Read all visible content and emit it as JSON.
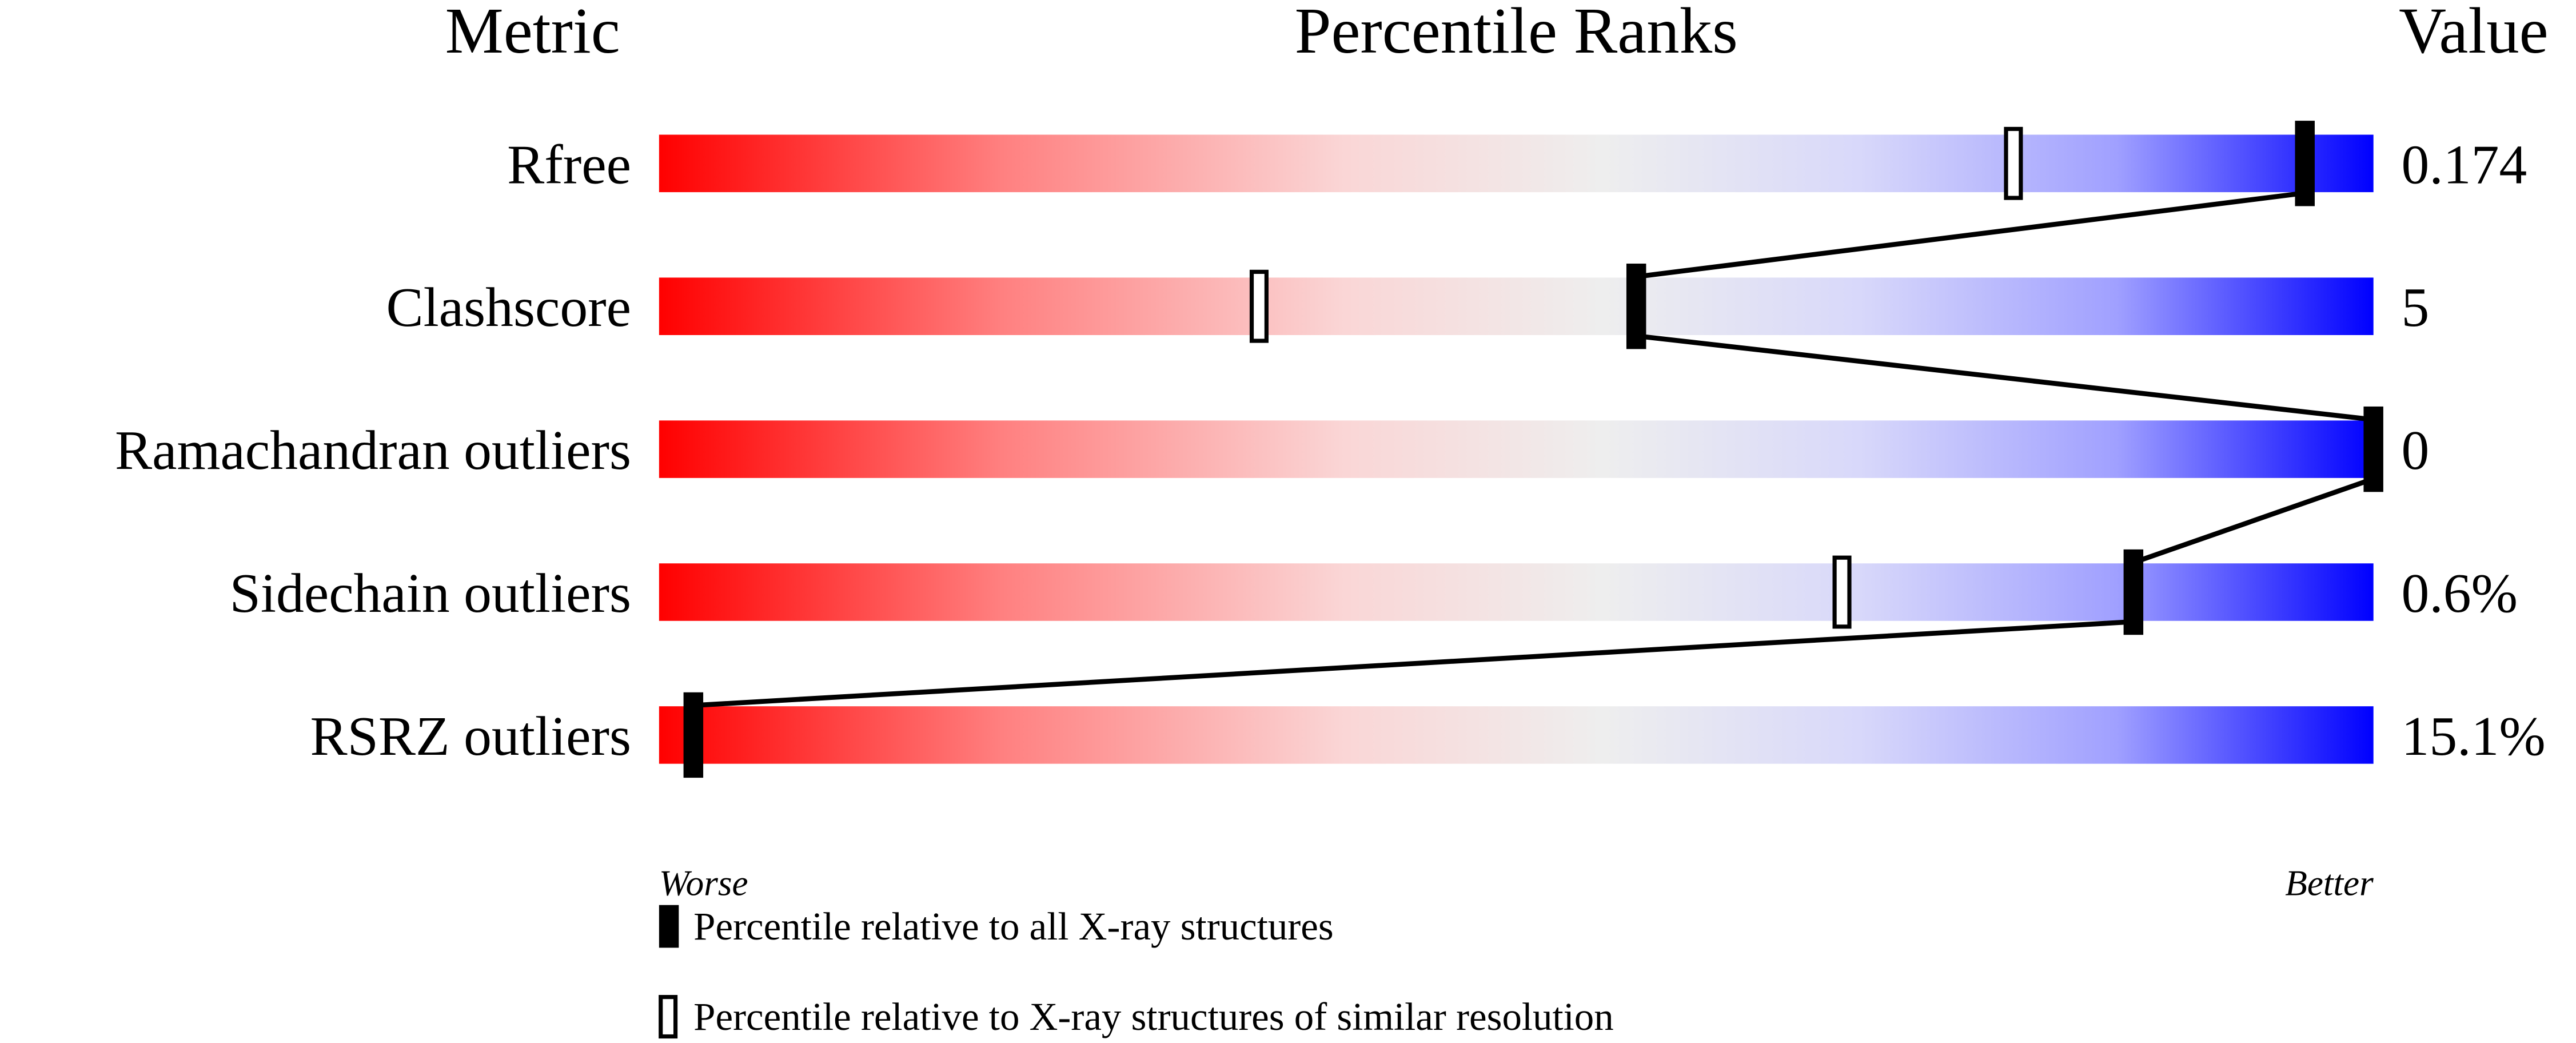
{
  "chart_data": {
    "type": "bar",
    "headers": {
      "metric": "Metric",
      "ranks": "Percentile Ranks",
      "value": "Value"
    },
    "xlim": [
      0,
      100
    ],
    "axis_labels": {
      "left": "Worse",
      "right": "Better"
    },
    "gradient_colors": [
      "#ff0000",
      "#eeeeee",
      "#0000ff"
    ],
    "rows": [
      {
        "metric": "Rfree",
        "value": "0.174",
        "percentile_all": 96,
        "percentile_similar": 79
      },
      {
        "metric": "Clashscore",
        "value": "5",
        "percentile_all": 57,
        "percentile_similar": 35
      },
      {
        "metric": "Ramachandran outliers",
        "value": "0",
        "percentile_all": 100,
        "percentile_similar": null
      },
      {
        "metric": "Sidechain outliers",
        "value": "0.6%",
        "percentile_all": 86,
        "percentile_similar": 69
      },
      {
        "metric": "RSRZ outliers",
        "value": "15.1%",
        "percentile_all": 2,
        "percentile_similar": null
      }
    ],
    "legend": [
      {
        "marker": "filled",
        "label": "Percentile relative to all X-ray structures"
      },
      {
        "marker": "open",
        "label": "Percentile relative to X-ray structures of similar resolution"
      }
    ]
  }
}
